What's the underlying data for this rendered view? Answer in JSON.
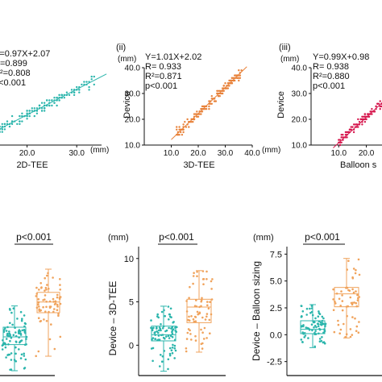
{
  "chart_data": [
    {
      "id": "top1",
      "type": "scatter",
      "xlabel": "2D-TEE",
      "x_unit": "(mm)",
      "stats": [
        "Y=0.97X+2.07",
        "R=0.899",
        "R²=0.808",
        "p<0.001"
      ],
      "xlim": [
        10,
        35
      ],
      "ylim": [
        10,
        40
      ],
      "x_ticks": [
        10,
        20,
        30
      ],
      "color": "#2bb5ac",
      "regression": {
        "slope": 0.97,
        "intercept": 2.07
      },
      "n_points": 180,
      "x_range": [
        12,
        34
      ]
    },
    {
      "id": "top2",
      "label": "(ii)",
      "type": "scatter",
      "xlabel": "3D-TEE",
      "ylabel": "Device",
      "y_unit": "(mm)",
      "x_unit": "(mm)",
      "stats": [
        "Y=1.01X+2.02",
        "R= 0.933",
        "R²=0.871",
        "p<0.001"
      ],
      "xlim": [
        0,
        40
      ],
      "ylim": [
        10,
        40
      ],
      "x_ticks": [
        10,
        20,
        30,
        40
      ],
      "y_ticks": [
        10,
        20,
        30,
        40
      ],
      "color": "#e8823a",
      "regression": {
        "slope": 1.01,
        "intercept": 2.02
      },
      "n_points": 160,
      "x_range": [
        12,
        36
      ]
    },
    {
      "id": "top3",
      "label": "(iii)",
      "type": "scatter",
      "xlabel": "Balloon s",
      "ylabel": "Device",
      "y_unit": "(mm)",
      "stats": [
        "Y=0.99X+0.98",
        "R= 0.938",
        "R²=0.880",
        "p<0.001"
      ],
      "xlim": [
        0,
        35
      ],
      "ylim": [
        10,
        40
      ],
      "x_ticks": [
        10,
        20,
        30
      ],
      "y_ticks": [
        10,
        20,
        30,
        40
      ],
      "color": "#d6194f",
      "regression": {
        "slope": 0.99,
        "intercept": 0.98
      },
      "n_points": 180,
      "x_range": [
        10,
        34
      ]
    },
    {
      "id": "bot1",
      "type": "box",
      "significance": "p<0.001",
      "ylim": [
        -3,
        10
      ],
      "groups": [
        {
          "color": "#2bb5ac",
          "min": -2.5,
          "q1": 0.2,
          "median": 1.0,
          "q3": 2.0,
          "max": 4.2,
          "n": 90
        },
        {
          "color": "#f0a35c",
          "min": -1.0,
          "q1": 3.5,
          "median": 4.6,
          "q3": 5.6,
          "max": 8.0,
          "n": 70
        }
      ]
    },
    {
      "id": "bot2",
      "type": "box",
      "significance": "p<0.001",
      "ylabel": "Device – 3D-TEE",
      "y_unit": "(mm)",
      "ylim": [
        -3.5,
        11
      ],
      "y_ticks": [
        0,
        5,
        10
      ],
      "groups": [
        {
          "color": "#2bb5ac",
          "min": -3.0,
          "q1": 0.5,
          "median": 1.2,
          "q3": 2.2,
          "max": 4.5,
          "n": 90
        },
        {
          "color": "#f0a35c",
          "min": -0.8,
          "q1": 2.6,
          "median": 4.4,
          "q3": 5.3,
          "max": 8.6,
          "n": 70
        }
      ]
    },
    {
      "id": "bot3",
      "type": "box",
      "significance": "p<0.001",
      "ylabel": "Device – Balloon sizing",
      "y_unit": "(mm)",
      "ylim": [
        -3.8,
        8.2
      ],
      "y_ticks": [
        -2.5,
        0.0,
        2.5,
        5.0,
        7.5
      ],
      "groups": [
        {
          "color": "#2bb5ac",
          "min": -1.2,
          "q1": 0.1,
          "median": 0.5,
          "q3": 1.3,
          "max": 2.8,
          "n": 80
        },
        {
          "color": "#f0a35c",
          "min": -0.3,
          "q1": 2.6,
          "median": 3.8,
          "q3": 4.4,
          "max": 7.1,
          "n": 60
        }
      ]
    }
  ]
}
